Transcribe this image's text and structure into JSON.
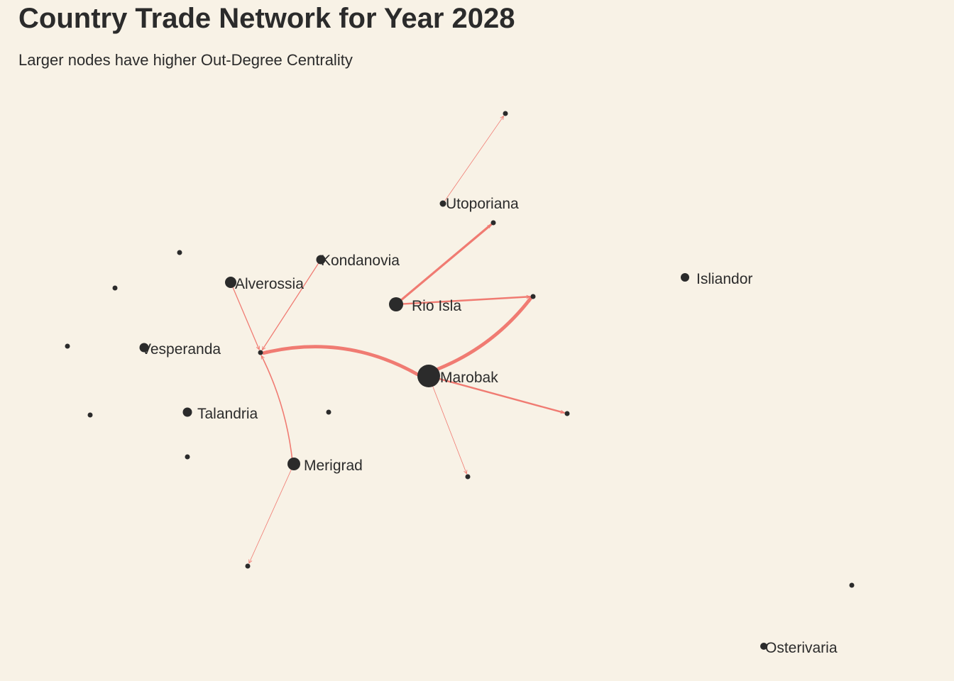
{
  "title": "Country Trade Network for Year 2028",
  "subtitle": "Larger nodes have higher Out-Degree Centrality",
  "colors": {
    "background": "#f8f2e6",
    "node": "#2b2b2b",
    "edge": "#f07b72"
  },
  "network": {
    "nodes": [
      {
        "id": "n_top",
        "label": ""
      },
      {
        "id": "utoporiana",
        "label": "Utoporiana"
      },
      {
        "id": "n_ut_target",
        "label": ""
      },
      {
        "id": "kondanovia",
        "label": "Kondanovia"
      },
      {
        "id": "n_topleft",
        "label": ""
      },
      {
        "id": "alverossia",
        "label": "Alverossia"
      },
      {
        "id": "n_left1",
        "label": ""
      },
      {
        "id": "rio_isla",
        "label": "Rio Isla"
      },
      {
        "id": "n_hub_east",
        "label": ""
      },
      {
        "id": "isliandor",
        "label": "Isliandor"
      },
      {
        "id": "n_left2",
        "label": ""
      },
      {
        "id": "vesperanda",
        "label": "Vesperanda"
      },
      {
        "id": "n_sink",
        "label": ""
      },
      {
        "id": "marobak",
        "label": "Marobak"
      },
      {
        "id": "n_left3",
        "label": ""
      },
      {
        "id": "talandria",
        "label": "Talandria"
      },
      {
        "id": "n_center",
        "label": ""
      },
      {
        "id": "n_east2",
        "label": ""
      },
      {
        "id": "n_low1",
        "label": ""
      },
      {
        "id": "merigrad",
        "label": "Merigrad"
      },
      {
        "id": "n_south",
        "label": ""
      },
      {
        "id": "n_south2",
        "label": ""
      },
      {
        "id": "n_far_east",
        "label": ""
      },
      {
        "id": "osterivaria",
        "label": "Osterivaria"
      }
    ],
    "edges": [
      {
        "source": "marobak",
        "target": "n_sink",
        "weight": 3
      },
      {
        "source": "marobak",
        "target": "n_hub_east",
        "weight": 3
      },
      {
        "source": "marobak",
        "target": "n_east2",
        "weight": 1.5
      },
      {
        "source": "marobak",
        "target": "n_south2",
        "weight": 0.5
      },
      {
        "source": "rio_isla",
        "target": "n_ut_target",
        "weight": 2
      },
      {
        "source": "rio_isla",
        "target": "n_hub_east",
        "weight": 1.5
      },
      {
        "source": "utoporiana",
        "target": "n_top",
        "weight": 0.5
      },
      {
        "source": "kondanovia",
        "target": "n_sink",
        "weight": 0.8
      },
      {
        "source": "alverossia",
        "target": "n_sink",
        "weight": 0.8
      },
      {
        "source": "merigrad",
        "target": "n_sink",
        "weight": 1
      },
      {
        "source": "merigrad",
        "target": "n_south",
        "weight": 0.5
      }
    ]
  }
}
